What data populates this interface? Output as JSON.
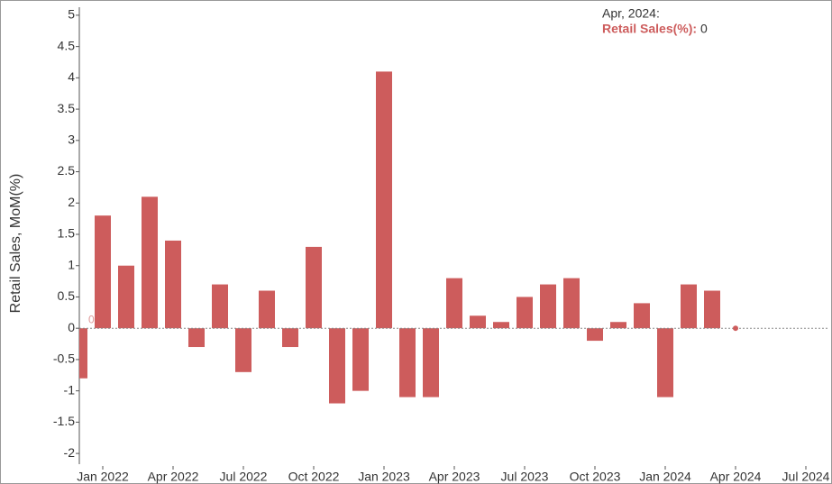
{
  "chart_data": {
    "type": "bar",
    "y_label": "Retail Sales, MoM(%)",
    "x": [
      "2021-12",
      "2022-01",
      "2022-02",
      "2022-03",
      "2022-04",
      "2022-05",
      "2022-06",
      "2022-07",
      "2022-08",
      "2022-09",
      "2022-10",
      "2022-11",
      "2022-12",
      "2023-01",
      "2023-02",
      "2023-03",
      "2023-04",
      "2023-05",
      "2023-06",
      "2023-07",
      "2023-08",
      "2023-09",
      "2023-10",
      "2023-11",
      "2023-12",
      "2024-01",
      "2024-02",
      "2024-03",
      "2024-04"
    ],
    "series": [
      {
        "name": "Retail Sales(%)",
        "color": "#cd5c5c",
        "values": [
          -0.8,
          1.8,
          1.0,
          2.1,
          1.4,
          -0.3,
          0.7,
          -0.7,
          0.6,
          -0.3,
          1.3,
          -1.2,
          -1.0,
          4.1,
          -1.1,
          -1.1,
          0.8,
          0.2,
          0.1,
          0.5,
          0.7,
          0.8,
          -0.2,
          0.1,
          0.4,
          -1.1,
          0.7,
          0.6,
          0
        ]
      }
    ],
    "xlim": [
      "2021-12",
      "2024-08"
    ],
    "xticks": [
      {
        "value": "2022-01",
        "label": "Jan 2022"
      },
      {
        "value": "2022-04",
        "label": "Apr 2022"
      },
      {
        "value": "2022-07",
        "label": "Jul 2022"
      },
      {
        "value": "2022-10",
        "label": "Oct 2022"
      },
      {
        "value": "2023-01",
        "label": "Jan 2023"
      },
      {
        "value": "2023-04",
        "label": "Apr 2023"
      },
      {
        "value": "2023-07",
        "label": "Jul 2023"
      },
      {
        "value": "2023-10",
        "label": "Oct 2023"
      },
      {
        "value": "2024-01",
        "label": "Jan 2024"
      },
      {
        "value": "2024-04",
        "label": "Apr 2024"
      },
      {
        "value": "2024-07",
        "label": "Jul 2024"
      }
    ],
    "ylim": [
      -2.2,
      5.2
    ],
    "yticks": [
      -2,
      -1.5,
      -1,
      -0.5,
      0,
      0.5,
      1,
      1.5,
      2,
      2.5,
      3,
      3.5,
      4,
      4.5,
      5
    ],
    "zero_label": "0",
    "tooltip": {
      "title": "Apr, 2024:",
      "label": "Retail Sales(%):"
    }
  }
}
